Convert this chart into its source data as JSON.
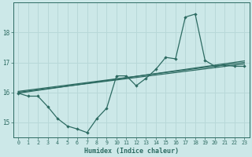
{
  "xlabel": "Humidex (Indice chaleur)",
  "bg_color": "#cce8e8",
  "line_color": "#2d6b62",
  "grid_color": "#b8d8d8",
  "xlim": [
    -0.5,
    23.5
  ],
  "ylim": [
    14.5,
    19.0
  ],
  "yticks": [
    15,
    16,
    17,
    18
  ],
  "xticks": [
    0,
    1,
    2,
    3,
    4,
    5,
    6,
    7,
    8,
    9,
    10,
    11,
    12,
    13,
    14,
    15,
    16,
    17,
    18,
    19,
    20,
    21,
    22,
    23
  ],
  "line1_x": [
    0,
    1,
    2,
    3,
    4,
    5,
    6,
    7,
    8,
    9,
    10,
    11,
    12,
    13,
    14,
    15,
    16,
    17,
    18,
    19,
    20,
    21,
    22,
    23
  ],
  "line1_y": [
    15.97,
    15.87,
    15.87,
    15.52,
    15.12,
    14.87,
    14.77,
    14.65,
    15.12,
    15.47,
    16.55,
    16.55,
    16.22,
    16.47,
    16.77,
    17.17,
    17.12,
    18.52,
    18.62,
    17.07,
    16.87,
    16.92,
    16.87,
    16.87
  ],
  "line2_x": [
    0,
    23
  ],
  "line2_y": [
    15.97,
    17.05
  ],
  "line3_x": [
    0,
    23
  ],
  "line3_y": [
    16.0,
    16.95
  ],
  "line4_x": [
    0,
    23
  ],
  "line4_y": [
    16.03,
    17.0
  ]
}
